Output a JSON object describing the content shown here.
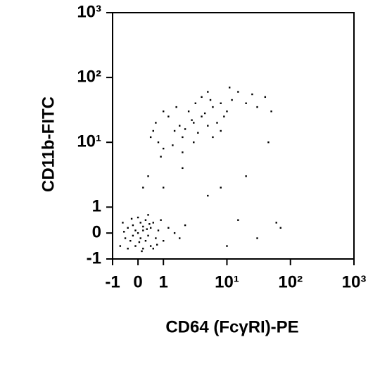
{
  "chart_data": {
    "type": "scatter",
    "scale": "biexponential",
    "color": "#000000",
    "xlabel": "CD64 (FcγRI)-PE",
    "ylabel": "CD11b-FITC",
    "xlim": [
      -1,
      1000
    ],
    "ylim": [
      -1,
      1000
    ],
    "xticks": [
      -1,
      0,
      1,
      {
        "value": 10,
        "label": "10¹"
      },
      {
        "value": 100,
        "label": "10²"
      },
      {
        "value": 1000,
        "label": "10³"
      }
    ],
    "yticks": [
      -1,
      0,
      1,
      {
        "value": 10,
        "label": "10¹"
      },
      {
        "value": 100,
        "label": "10²"
      },
      {
        "value": 1000,
        "label": "10³"
      }
    ],
    "x": [
      0,
      0.2,
      -0.2,
      0.3,
      -0.4,
      0.1,
      0.5,
      -0.1,
      0.4,
      -0.3,
      0.6,
      0.2,
      -0.5,
      0.7,
      0,
      0.8,
      -0.6,
      0.3,
      1.0,
      0.1,
      -0.2,
      0.5,
      1.2,
      -0.7,
      0.9,
      0.4,
      -0.1,
      0.2,
      1.5,
      0.6,
      -0.4,
      0.05,
      0.35,
      -0.25,
      0.75,
      1.8,
      2.2,
      0.15,
      -0.55,
      0.45,
      1,
      2,
      3,
      1.5,
      4,
      5,
      0.8,
      2.5,
      6,
      8,
      3,
      1.2,
      0.6,
      10,
      12,
      2,
      4,
      7,
      15,
      20,
      1,
      3.5,
      0.9,
      5,
      2.8,
      1.8,
      9,
      25,
      0.7,
      6,
      1.4,
      3.2,
      11,
      2.2,
      4.5,
      0.5,
      8,
      30,
      1.6,
      5.5,
      40,
      50,
      0.4,
      1,
      20,
      60,
      30,
      8,
      2,
      70,
      15,
      5,
      0.2,
      10,
      45
    ],
    "y": [
      0,
      0.1,
      -0.1,
      -0.3,
      0.2,
      0.4,
      0.2,
      -0.5,
      -0.1,
      -0.3,
      0.4,
      -0.6,
      -0.2,
      -0.2,
      0.6,
      0.1,
      0.4,
      0.5,
      -0.3,
      -0.2,
      0.3,
      -0.5,
      0.2,
      -0.5,
      0.5,
      0.7,
      0.1,
      0.25,
      0,
      -0.6,
      -0.6,
      -0.35,
      0.15,
      0.55,
      -0.45,
      -0.2,
      0.3,
      -0.7,
      0.05,
      0.35,
      8,
      12,
      20,
      15,
      25,
      18,
      10,
      30,
      35,
      40,
      10,
      25,
      15,
      30,
      45,
      7,
      50,
      20,
      60,
      40,
      30,
      14,
      6,
      60,
      22,
      18,
      25,
      55,
      20,
      12,
      9,
      40,
      70,
      16,
      28,
      12,
      15,
      35,
      35,
      45,
      50,
      30,
      3,
      2,
      3,
      0.4,
      -0.2,
      2,
      4,
      0.2,
      0.5,
      1.5,
      2,
      -0.5,
      10
    ]
  }
}
